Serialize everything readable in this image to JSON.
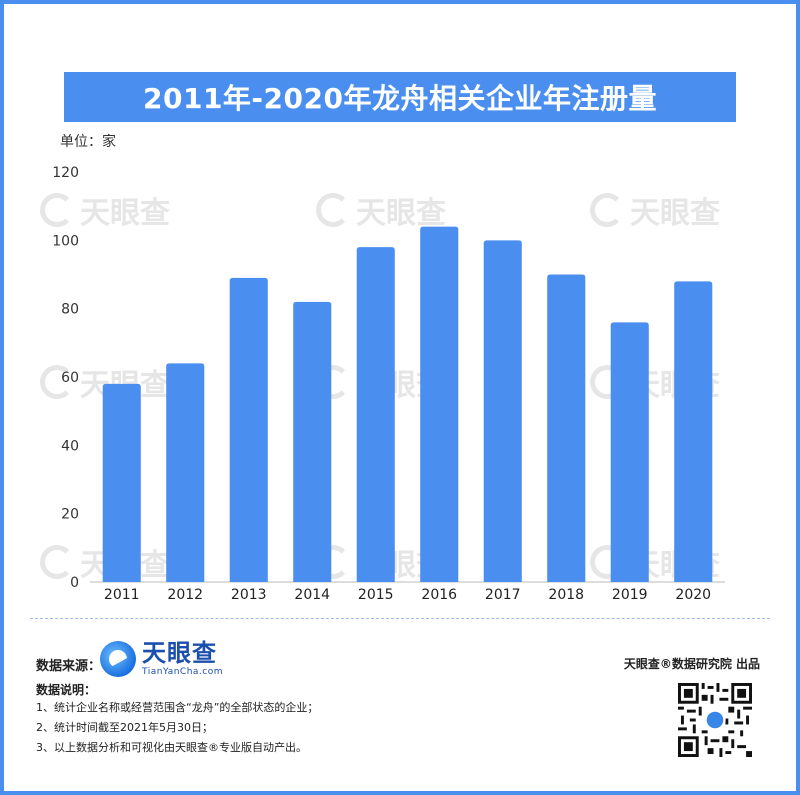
{
  "header": {
    "title": "2011年-2020年龙舟相关企业年注册量",
    "unit": "单位：家"
  },
  "watermark": {
    "name": "天眼查",
    "domain": "TianYanCha.com"
  },
  "chart_data": {
    "type": "bar",
    "title": "2011年-2020年龙舟相关企业年注册量",
    "categories": [
      "2011",
      "2012",
      "2013",
      "2014",
      "2015",
      "2016",
      "2017",
      "2018",
      "2019",
      "2020"
    ],
    "values": [
      58,
      64,
      89,
      82,
      98,
      104,
      100,
      90,
      76,
      88
    ],
    "ylim": [
      0,
      120
    ],
    "yticks": [
      0,
      20,
      40,
      60,
      80,
      100,
      120
    ],
    "bar_color": "#4a8ff0",
    "grid": false
  },
  "footer": {
    "source_label": "数据来源：",
    "brand_name": "天眼查",
    "brand_domain": "TianYanCha.com",
    "notes_title": "数据说明：",
    "notes": [
      "1、统计企业名称或经营范围含“龙舟”的全部状态的企业；",
      "2、统计时间截至2021年5月30日；",
      "3、以上数据分析和可视化由天眼查®专业版自动产出。"
    ],
    "credit": "天眼查®数据研究院 出品"
  },
  "colors": {
    "accent": "#4a8ff0",
    "brand": "#1b4fae"
  }
}
